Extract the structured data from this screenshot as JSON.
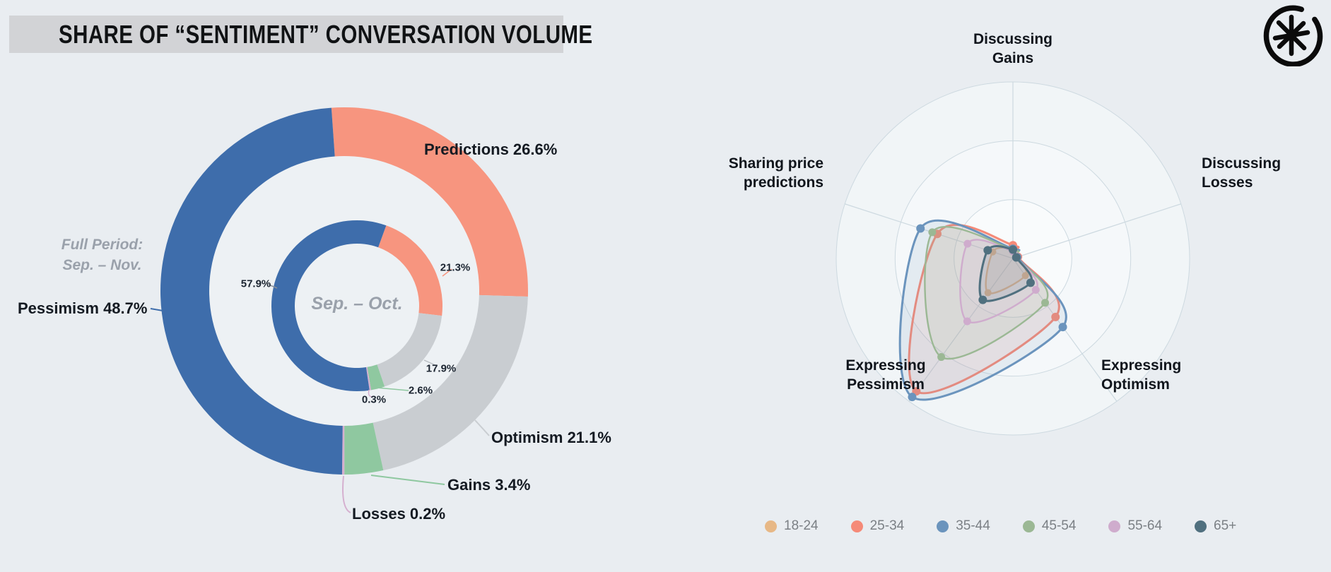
{
  "title": {
    "text": "SHARE OF “SENTIMENT” CONVERSATION VOLUME"
  },
  "logo": {
    "name": "asterisk-in-circle-logo"
  },
  "donut": {
    "outer_period_label": "Full Period:\nSep. – Nov.",
    "center_label": "Sep. – Oct.",
    "outer_slices": [
      {
        "label": "Predictions",
        "value": 26.6,
        "color": "#f7957f"
      },
      {
        "label": "Optimism",
        "value": 21.1,
        "color": "#c9cdd1"
      },
      {
        "label": "Gains",
        "value": 3.4,
        "color": "#8fc8a0"
      },
      {
        "label": "Losses",
        "value": 0.2,
        "color": "#d5afcf"
      },
      {
        "label": "Pessimism",
        "value": 48.7,
        "color": "#3e6dab"
      }
    ],
    "inner_slices": [
      {
        "label": "Predictions",
        "value": 21.3,
        "color": "#f7957f"
      },
      {
        "label": "Optimism",
        "value": 17.9,
        "color": "#c9cdd1"
      },
      {
        "label": "Gains",
        "value": 2.6,
        "color": "#8fc8a0"
      },
      {
        "label": "Losses",
        "value": 0.3,
        "color": "#d5afcf"
      },
      {
        "label": "Pessimism",
        "value": 57.9,
        "color": "#3e6dab"
      }
    ]
  },
  "radar": {
    "axis_labels": [
      "Discussing\nGains",
      "Discussing\nLosses",
      "Expressing\nOptimism",
      "Expressing\nPessimism",
      "Sharing price\npredictions"
    ],
    "series": [
      {
        "name": "18-24",
        "color": "#e7b886",
        "values": [
          5,
          2,
          12,
          24,
          12
        ]
      },
      {
        "name": "25-34",
        "color": "#f58a78",
        "values": [
          7.5,
          3,
          41,
          93,
          45
        ]
      },
      {
        "name": "35-44",
        "color": "#6b94bd",
        "values": [
          5.5,
          2.5,
          48,
          97,
          55
        ]
      },
      {
        "name": "45-54",
        "color": "#9bb894",
        "values": [
          5,
          2,
          31,
          69,
          48
        ]
      },
      {
        "name": "55-64",
        "color": "#cfaccd",
        "values": [
          4,
          2,
          22,
          44,
          27
        ]
      },
      {
        "name": "65+",
        "color": "#50707f",
        "values": [
          5,
          2,
          17,
          29,
          15
        ]
      }
    ]
  },
  "chart_data": [
    {
      "type": "pie",
      "subtype": "nested-donut",
      "title": "SHARE OF “SENTIMENT” CONVERSATION VOLUME",
      "rings": [
        {
          "name": "Full Period: Sep. – Nov.",
          "categories": [
            "Predictions",
            "Optimism",
            "Gains",
            "Losses",
            "Pessimism"
          ],
          "values": [
            26.6,
            21.1,
            3.4,
            0.2,
            48.7
          ],
          "colors": [
            "#f7957f",
            "#c9cdd1",
            "#8fc8a0",
            "#d5afcf",
            "#3e6dab"
          ]
        },
        {
          "name": "Sep. – Oct.",
          "categories": [
            "Predictions",
            "Optimism",
            "Gains",
            "Losses",
            "Pessimism"
          ],
          "values": [
            21.3,
            17.9,
            2.6,
            0.3,
            57.9
          ],
          "colors": [
            "#f7957f",
            "#c9cdd1",
            "#8fc8a0",
            "#d5afcf",
            "#3e6dab"
          ]
        }
      ],
      "legend_position": "none"
    },
    {
      "type": "radar",
      "title": "Sentiment conversation volume by age group",
      "categories": [
        "Discussing Gains",
        "Discussing Losses",
        "Expressing Optimism",
        "Expressing Pessimism",
        "Sharing price predictions"
      ],
      "rmax": 100,
      "gridlines": [
        33.3,
        66.7,
        100
      ],
      "grid_on": true,
      "legend_position": "bottom",
      "note": "Values estimated from plot; 100 = outer gridline radius",
      "series": [
        {
          "name": "18-24",
          "values": [
            5,
            2,
            12,
            24,
            12
          ]
        },
        {
          "name": "25-34",
          "values": [
            7.5,
            3,
            41,
            93,
            45
          ]
        },
        {
          "name": "35-44",
          "values": [
            5.5,
            2.5,
            48,
            97,
            55
          ]
        },
        {
          "name": "45-54",
          "values": [
            5,
            2,
            31,
            69,
            48
          ]
        },
        {
          "name": "55-64",
          "values": [
            4,
            2,
            22,
            44,
            27
          ]
        },
        {
          "name": "65+",
          "values": [
            5,
            2,
            17,
            29,
            15
          ]
        }
      ]
    }
  ]
}
